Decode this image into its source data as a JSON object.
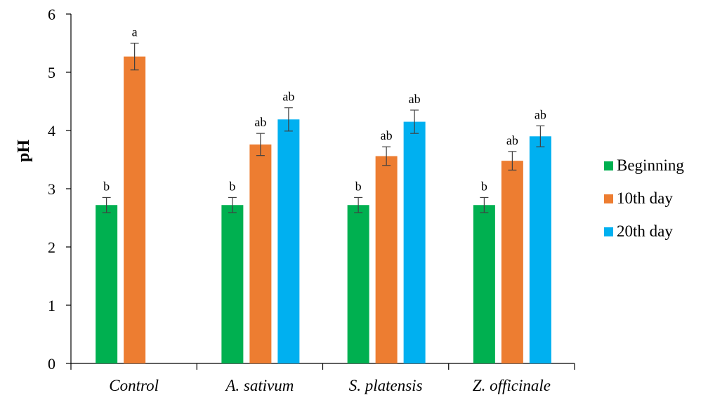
{
  "chart_data": {
    "type": "bar",
    "title": "",
    "xlabel": "",
    "ylabel": "pH",
    "ylim": [
      0,
      6
    ],
    "yticks": [
      "0",
      "1",
      "2",
      "3",
      "4",
      "5",
      "6"
    ],
    "categories": [
      "Control",
      "A. sativum",
      "S. platensis",
      "Z. officinale"
    ],
    "series": [
      {
        "name": "Beginning",
        "color": "#00b050",
        "values": [
          2.72,
          2.72,
          2.72,
          2.72
        ],
        "errors": [
          0.13,
          0.13,
          0.13,
          0.13
        ],
        "labels": [
          "b",
          "b",
          "b",
          "b"
        ]
      },
      {
        "name": "10th day",
        "color": "#ed7d31",
        "values": [
          5.27,
          3.76,
          3.56,
          3.48
        ],
        "errors": [
          0.23,
          0.19,
          0.16,
          0.16
        ],
        "labels": [
          "a",
          "ab",
          "ab",
          "ab"
        ]
      },
      {
        "name": "20th day",
        "color": "#00b0f0",
        "values": [
          null,
          4.19,
          4.15,
          3.9
        ],
        "errors": [
          null,
          0.2,
          0.2,
          0.18
        ],
        "labels": [
          "",
          "ab",
          "ab",
          "ab"
        ]
      }
    ],
    "grid": false,
    "legend_position": "right"
  }
}
